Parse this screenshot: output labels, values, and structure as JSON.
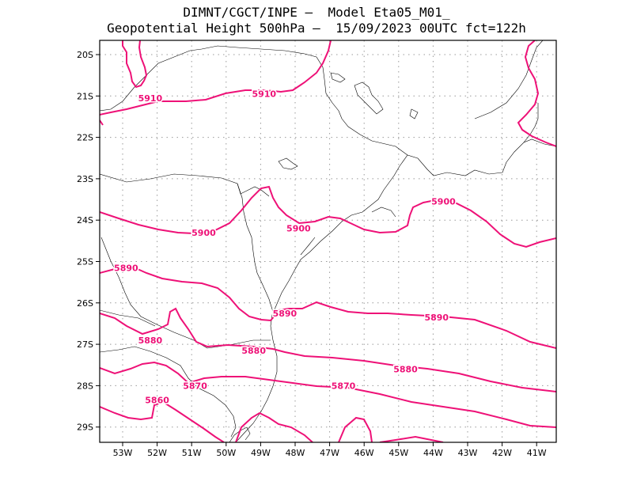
{
  "header": {
    "line1": "DIMNT/CGCT/INPE –  Model Eta05_M01_",
    "line2": "Geopotential Height 500hPa –  15/09/2023 00UTC fct=122h"
  },
  "map": {
    "lon_labels": [
      "53W",
      "52W",
      "51W",
      "50W",
      "49W",
      "48W",
      "47W",
      "46W",
      "45W",
      "44W",
      "43W",
      "42W",
      "41W"
    ],
    "lat_labels": [
      "20S",
      "21S",
      "22S",
      "23S",
      "24S",
      "25S",
      "26S",
      "27S",
      "28S",
      "29S"
    ],
    "contour_color": "#ee1177",
    "coast_color": "#000000",
    "contour_labels": [
      {
        "text": "5910",
        "lon": -52.2,
        "lat": -21.05
      },
      {
        "text": "5910",
        "lon": -48.9,
        "lat": -20.95
      },
      {
        "text": "5900",
        "lon": -50.65,
        "lat": -24.3
      },
      {
        "text": "5900",
        "lon": -47.9,
        "lat": -24.2
      },
      {
        "text": "5900",
        "lon": -43.7,
        "lat": -23.55
      },
      {
        "text": "5890",
        "lon": -52.9,
        "lat": -25.15
      },
      {
        "text": "5890",
        "lon": -48.3,
        "lat": -26.25
      },
      {
        "text": "5890",
        "lon": -43.9,
        "lat": -26.35
      },
      {
        "text": "5880",
        "lon": -52.2,
        "lat": -26.9
      },
      {
        "text": "5880",
        "lon": -49.2,
        "lat": -27.15
      },
      {
        "text": "5880",
        "lon": -44.8,
        "lat": -27.6
      },
      {
        "text": "5870",
        "lon": -50.9,
        "lat": -28.0
      },
      {
        "text": "5870",
        "lon": -46.6,
        "lat": -28.0
      },
      {
        "text": "5860",
        "lon": -52.0,
        "lat": -28.35
      }
    ]
  }
}
